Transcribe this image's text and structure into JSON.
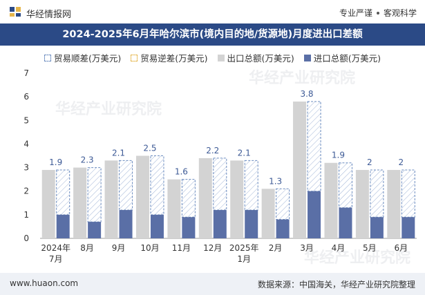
{
  "header": {
    "brand": "华经情报网",
    "tagline_left": "专业严谨",
    "tagline_right": "客观科学"
  },
  "colors": {
    "title_bg": "#2b4a86",
    "export": "#d3d3d3",
    "import": "#5a6fa6",
    "surplus_border": "#6a8bbf",
    "deficit_border": "#e5b54a",
    "label": "#3d5a96"
  },
  "chart_data": {
    "type": "bar",
    "title": "2024-2025年6月年哈尔滨市(境内目的地/货源地)月度进出口差额",
    "legend": [
      "贸易顺差(万美元)",
      "贸易逆差(万美元)",
      "出口总额(万美元)",
      "进口总额(万美元)"
    ],
    "categories": [
      "2024年\n7月",
      "8月",
      "9月",
      "10月",
      "11月",
      "12月",
      "2025年\n1月",
      "2月",
      "3月",
      "4月",
      "5月",
      "6月"
    ],
    "series": [
      {
        "name": "出口总额(万美元)",
        "values": [
          2.9,
          3.0,
          3.3,
          3.5,
          2.5,
          3.4,
          3.3,
          2.1,
          5.8,
          3.2,
          2.9,
          2.9
        ]
      },
      {
        "name": "进口总额(万美元)",
        "values": [
          1.0,
          0.7,
          1.2,
          1.0,
          0.9,
          1.2,
          1.2,
          0.8,
          2.0,
          1.3,
          0.9,
          0.9
        ]
      },
      {
        "name": "贸易顺差(万美元)",
        "values": [
          1.9,
          2.3,
          2.1,
          2.5,
          1.6,
          2.2,
          2.1,
          1.3,
          3.8,
          1.9,
          2,
          2
        ]
      }
    ],
    "data_labels": [
      "1.9",
      "2.3",
      "2.1",
      "2.5",
      "1.6",
      "2.2",
      "2.1",
      "1.3",
      "3.8",
      "1.9",
      "2",
      "2"
    ],
    "ylim": [
      0,
      7
    ],
    "yticks": [
      "0",
      "1",
      "2",
      "3",
      "4",
      "5",
      "6",
      "7"
    ],
    "grid": false,
    "legend_position": "top"
  },
  "watermark": {
    "text": "华经产业研究院",
    "url": "www.huaon.com"
  },
  "footer": {
    "website": "www.huaon.com",
    "source": "数据来源：中国海关，华经产业研究院整理"
  }
}
